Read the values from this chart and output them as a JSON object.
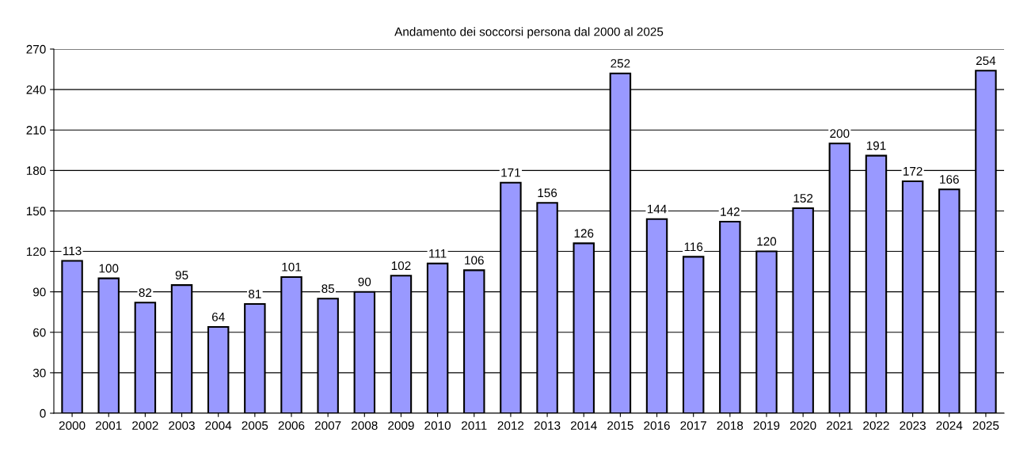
{
  "chart_data": {
    "type": "bar",
    "title": "Andamento dei soccorsi persona dal 2000 al 2025",
    "categories": [
      "2000",
      "2001",
      "2002",
      "2003",
      "2004",
      "2005",
      "2006",
      "2007",
      "2008",
      "2009",
      "2010",
      "2011",
      "2012",
      "2013",
      "2014",
      "2015",
      "2016",
      "2017",
      "2018",
      "2019",
      "2020",
      "2021",
      "2022",
      "2023",
      "2024",
      "2025"
    ],
    "values": [
      113,
      100,
      82,
      95,
      64,
      81,
      101,
      85,
      90,
      102,
      111,
      106,
      171,
      156,
      126,
      252,
      144,
      116,
      142,
      120,
      152,
      200,
      191,
      172,
      166,
      254
    ],
    "color": "#9999ff",
    "ylim": [
      0,
      270
    ],
    "yticks": [
      0,
      30,
      60,
      90,
      120,
      150,
      180,
      210,
      240,
      270
    ],
    "grid": "y",
    "data_labels": true,
    "legend": false
  }
}
